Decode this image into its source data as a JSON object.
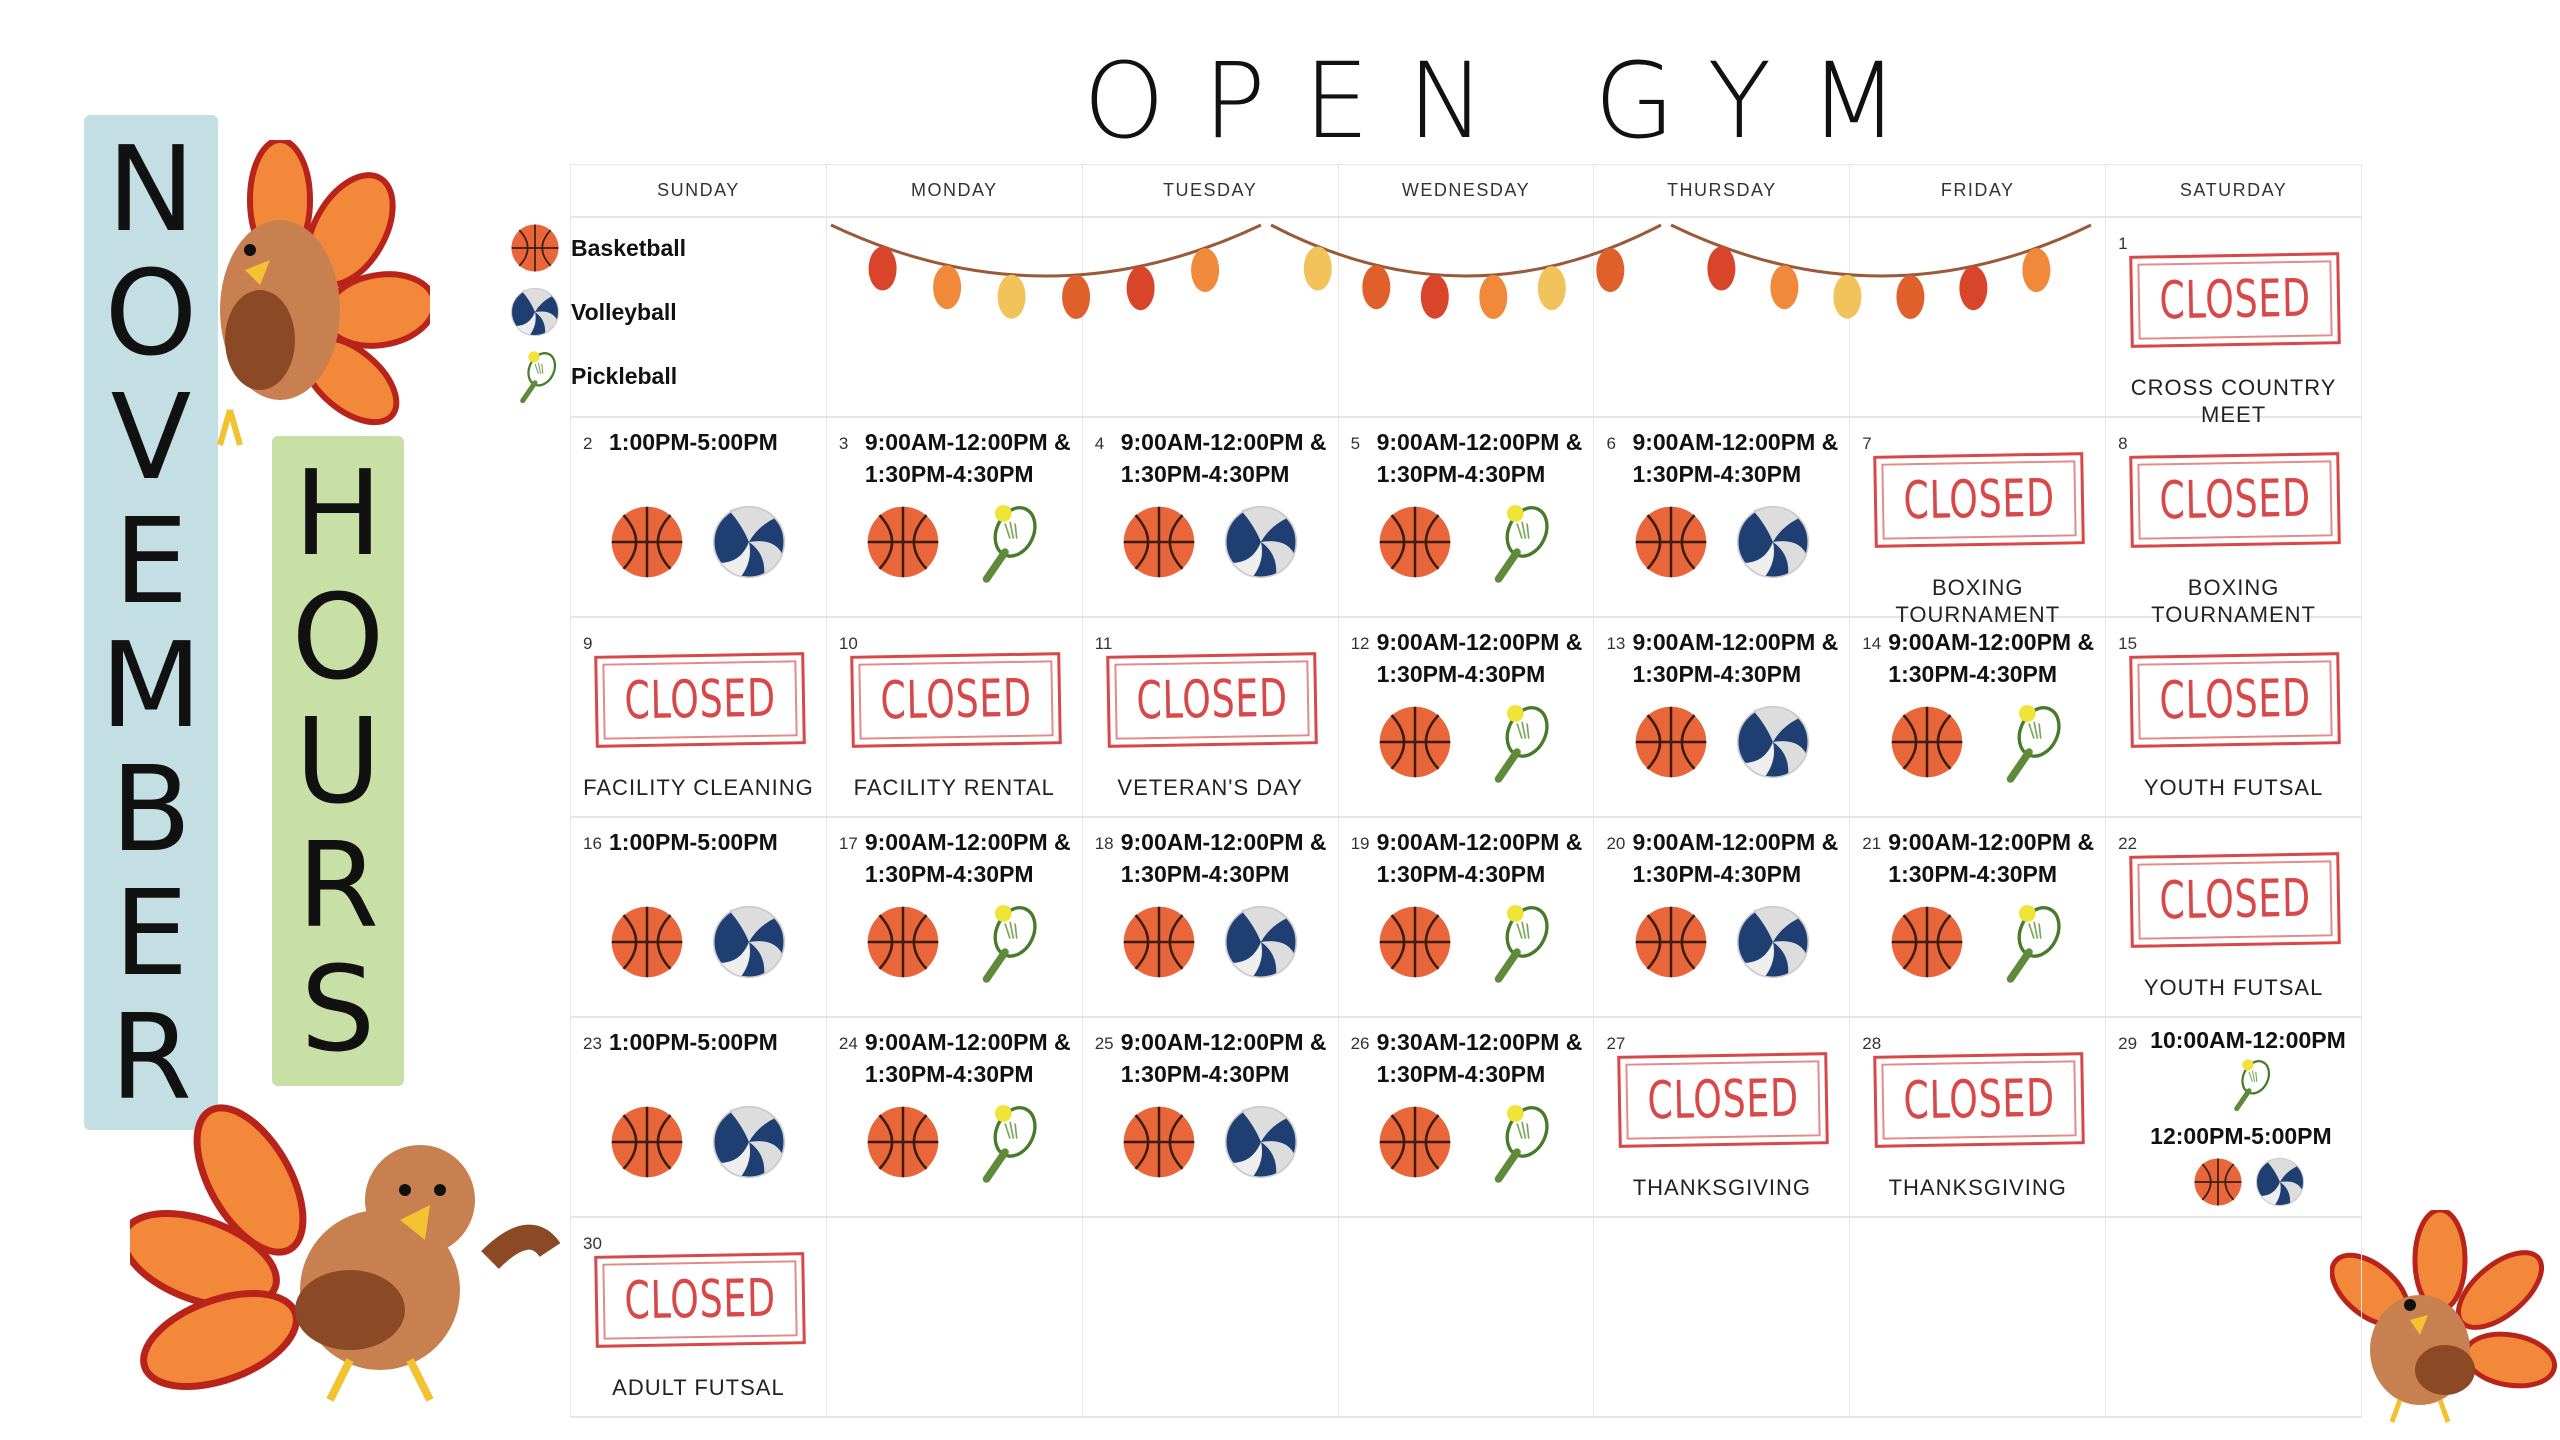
{
  "title": "OPEN GYM",
  "side_left": "NOVEMBER",
  "side_right": "HOURS",
  "days": [
    "SUNDAY",
    "MONDAY",
    "TUESDAY",
    "WEDNESDAY",
    "THURSDAY",
    "FRIDAY",
    "SATURDAY"
  ],
  "legend": [
    {
      "icon": "basketball",
      "label": "Basketball"
    },
    {
      "icon": "volleyball",
      "label": "Volleyball"
    },
    {
      "icon": "pickleball",
      "label": "Pickleball"
    }
  ],
  "closed_label": "CLOSED",
  "colors": {
    "closed": "#d84848",
    "novbar": "#c4dfe3",
    "hoursbar": "#c8dfa6",
    "basketball": "#e8663a",
    "volleyball": "#1f3f73"
  },
  "weeks": [
    [
      {},
      {},
      {},
      {},
      {},
      {},
      {
        "day": "1",
        "closed": true,
        "caption": "CROSS COUNTRY MEET"
      }
    ],
    [
      {
        "day": "2",
        "times": [
          "1:00PM-5:00PM"
        ],
        "icons": [
          "basketball",
          "volleyball"
        ]
      },
      {
        "day": "3",
        "times": [
          "9:00AM-12:00PM &",
          "1:30PM-4:30PM"
        ],
        "icons": [
          "basketball",
          "pickleball"
        ]
      },
      {
        "day": "4",
        "times": [
          "9:00AM-12:00PM &",
          "1:30PM-4:30PM"
        ],
        "icons": [
          "basketball",
          "volleyball"
        ]
      },
      {
        "day": "5",
        "times": [
          "9:00AM-12:00PM &",
          "1:30PM-4:30PM"
        ],
        "icons": [
          "basketball",
          "pickleball"
        ]
      },
      {
        "day": "6",
        "times": [
          "9:00AM-12:00PM &",
          "1:30PM-4:30PM"
        ],
        "icons": [
          "basketball",
          "volleyball"
        ]
      },
      {
        "day": "7",
        "closed": true,
        "caption": "BOXING TOURNAMENT"
      },
      {
        "day": "8",
        "closed": true,
        "caption": "BOXING TOURNAMENT"
      }
    ],
    [
      {
        "day": "9",
        "closed": true,
        "caption": "FACILITY CLEANING"
      },
      {
        "day": "10",
        "closed": true,
        "caption": "FACILITY RENTAL"
      },
      {
        "day": "11",
        "closed": true,
        "caption": "VETERAN'S DAY"
      },
      {
        "day": "12",
        "times": [
          "9:00AM-12:00PM &",
          "1:30PM-4:30PM"
        ],
        "icons": [
          "basketball",
          "pickleball"
        ]
      },
      {
        "day": "13",
        "times": [
          "9:00AM-12:00PM &",
          "1:30PM-4:30PM"
        ],
        "icons": [
          "basketball",
          "volleyball"
        ]
      },
      {
        "day": "14",
        "times": [
          "9:00AM-12:00PM &",
          "1:30PM-4:30PM"
        ],
        "icons": [
          "basketball",
          "pickleball"
        ]
      },
      {
        "day": "15",
        "closed": true,
        "caption": "YOUTH FUTSAL"
      }
    ],
    [
      {
        "day": "16",
        "times": [
          "1:00PM-5:00PM"
        ],
        "icons": [
          "basketball",
          "volleyball"
        ]
      },
      {
        "day": "17",
        "times": [
          "9:00AM-12:00PM &",
          "1:30PM-4:30PM"
        ],
        "icons": [
          "basketball",
          "pickleball"
        ]
      },
      {
        "day": "18",
        "times": [
          "9:00AM-12:00PM &",
          "1:30PM-4:30PM"
        ],
        "icons": [
          "basketball",
          "volleyball"
        ]
      },
      {
        "day": "19",
        "times": [
          "9:00AM-12:00PM &",
          "1:30PM-4:30PM"
        ],
        "icons": [
          "basketball",
          "pickleball"
        ]
      },
      {
        "day": "20",
        "times": [
          "9:00AM-12:00PM &",
          "1:30PM-4:30PM"
        ],
        "icons": [
          "basketball",
          "volleyball"
        ]
      },
      {
        "day": "21",
        "times": [
          "9:00AM-12:00PM &",
          "1:30PM-4:30PM"
        ],
        "icons": [
          "basketball",
          "pickleball"
        ]
      },
      {
        "day": "22",
        "closed": true,
        "caption": "YOUTH FUTSAL"
      }
    ],
    [
      {
        "day": "23",
        "times": [
          "1:00PM-5:00PM"
        ],
        "icons": [
          "basketball",
          "volleyball"
        ]
      },
      {
        "day": "24",
        "times": [
          "9:00AM-12:00PM &",
          "1:30PM-4:30PM"
        ],
        "icons": [
          "basketball",
          "pickleball"
        ]
      },
      {
        "day": "25",
        "times": [
          "9:00AM-12:00PM &",
          "1:30PM-4:30PM"
        ],
        "icons": [
          "basketball",
          "volleyball"
        ]
      },
      {
        "day": "26",
        "times": [
          "9:30AM-12:00PM &",
          "1:30PM-4:30PM"
        ],
        "icons": [
          "basketball",
          "pickleball"
        ]
      },
      {
        "day": "27",
        "closed": true,
        "caption": "THANKSGIVING"
      },
      {
        "day": "28",
        "closed": true,
        "caption": "THANKSGIVING"
      },
      {
        "day": "29",
        "special": [
          {
            "time": "10:00AM-12:00PM",
            "icons": [
              "pickleball"
            ]
          },
          {
            "time": "12:00PM-5:00PM",
            "icons": [
              "basketball",
              "volleyball"
            ]
          }
        ]
      }
    ],
    [
      {
        "day": "30",
        "closed": true,
        "caption": "ADULT FUTSAL"
      },
      {},
      {},
      {},
      {},
      {},
      {}
    ]
  ]
}
